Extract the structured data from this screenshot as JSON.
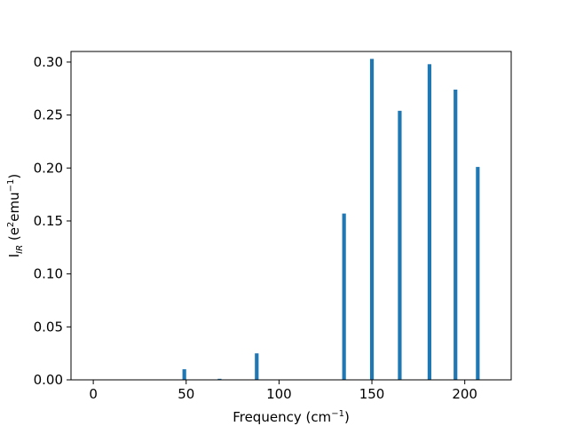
{
  "chart_data": {
    "type": "bar",
    "xlabel": "Frequency (cm",
    "xlabel_sup": "−1",
    "xlabel_end": ")",
    "ylabel_main": "I",
    "ylabel_sub": "IR",
    "ylabel_unit_a": " (e",
    "ylabel_sup_a": "2",
    "ylabel_unit_b": "emu",
    "ylabel_sup_b": "−1",
    "ylabel_end": ")",
    "xlim": [
      -12,
      225
    ],
    "ylim": [
      0,
      0.31
    ],
    "xticks": [
      0,
      50,
      100,
      150,
      200
    ],
    "yticks": [
      0.0,
      0.05,
      0.1,
      0.15,
      0.2,
      0.25,
      0.3
    ],
    "xtick_labels": [
      "0",
      "50",
      "100",
      "150",
      "200"
    ],
    "ytick_labels": [
      "0.00",
      "0.05",
      "0.10",
      "0.15",
      "0.20",
      "0.25",
      "0.30"
    ],
    "bar_width": 2,
    "color": "#1f77b4",
    "grid": false,
    "points": [
      {
        "x": 49,
        "y": 0.01
      },
      {
        "x": 68,
        "y": 0.001
      },
      {
        "x": 88,
        "y": 0.025
      },
      {
        "x": 135,
        "y": 0.157
      },
      {
        "x": 150,
        "y": 0.303
      },
      {
        "x": 165,
        "y": 0.254
      },
      {
        "x": 181,
        "y": 0.298
      },
      {
        "x": 195,
        "y": 0.274
      },
      {
        "x": 207,
        "y": 0.201
      }
    ]
  }
}
